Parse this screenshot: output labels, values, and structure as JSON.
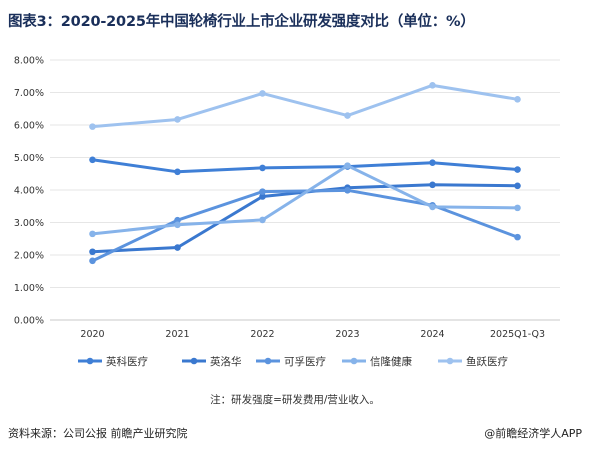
{
  "title": "图表3：2020-2025年中国轮椅行业上市企业研发强度对比（单位：%）",
  "note": "注：研发强度=研发费用/营业收入。",
  "source": "资料来源：公司公报  前瞻产业研究院",
  "brand": "@前瞻经济学人APP",
  "colors": {
    "英科医疗": "#3f7fd6",
    "英洛华": "#3a78cf",
    "可孚医疗": "#5b93de",
    "信隆健康": "#86b3ea",
    "鱼跃医疗": "#9ec2ef"
  },
  "chart_data": {
    "type": "line",
    "categories": [
      "2020",
      "2021",
      "2022",
      "2023",
      "2024",
      "2025Q1-Q3"
    ],
    "ylim": [
      0,
      8
    ],
    "yticks": [
      "0.00%",
      "1.00%",
      "2.00%",
      "3.00%",
      "4.00%",
      "5.00%",
      "6.00%",
      "7.00%",
      "8.00%"
    ],
    "grid": "horizontal",
    "legend": "bottom",
    "series": [
      {
        "name": "英科医疗",
        "values": [
          4.93,
          4.56,
          4.68,
          4.72,
          4.84,
          4.63
        ]
      },
      {
        "name": "英洛华",
        "values": [
          2.1,
          2.23,
          3.8,
          4.07,
          4.16,
          4.13
        ]
      },
      {
        "name": "可孚医疗",
        "values": [
          1.82,
          3.07,
          3.95,
          3.99,
          3.53,
          2.55
        ]
      },
      {
        "name": "信隆健康",
        "values": [
          2.65,
          2.93,
          3.08,
          4.75,
          3.48,
          3.45
        ]
      },
      {
        "name": "鱼跃医疗",
        "values": [
          5.95,
          6.17,
          6.97,
          6.29,
          7.22,
          6.79
        ]
      }
    ]
  }
}
